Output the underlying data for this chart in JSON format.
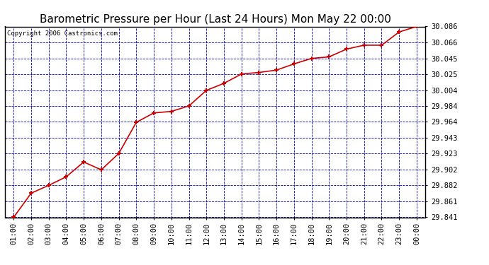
{
  "title": "Barometric Pressure per Hour (Last 24 Hours) Mon May 22 00:00",
  "copyright": "Copyright 2006 Castronics.com",
  "x_labels": [
    "01:00",
    "02:00",
    "03:00",
    "04:00",
    "05:00",
    "06:00",
    "07:00",
    "08:00",
    "09:00",
    "10:00",
    "11:00",
    "12:00",
    "13:00",
    "14:00",
    "15:00",
    "16:00",
    "17:00",
    "18:00",
    "19:00",
    "20:00",
    "21:00",
    "22:00",
    "23:00",
    "00:00"
  ],
  "y_values": [
    29.841,
    29.872,
    29.882,
    29.893,
    29.912,
    29.902,
    29.923,
    29.963,
    29.975,
    29.977,
    29.984,
    30.004,
    30.013,
    30.025,
    30.027,
    30.03,
    30.038,
    30.045,
    30.047,
    30.057,
    30.062,
    30.062,
    30.079,
    30.086
  ],
  "y_ticks": [
    29.841,
    29.861,
    29.882,
    29.902,
    29.923,
    29.943,
    29.964,
    29.984,
    30.004,
    30.025,
    30.045,
    30.066,
    30.086
  ],
  "y_min": 29.841,
  "y_max": 30.086,
  "line_color": "#cc0000",
  "marker_color": "#cc0000",
  "bg_color": "#ffffff",
  "plot_bg_color": "#ffffff",
  "grid_color": "#0000bb",
  "title_color": "#000000",
  "border_color": "#000000",
  "title_fontsize": 11,
  "copyright_fontsize": 6.5,
  "tick_fontsize": 7.5,
  "marker_size": 5
}
